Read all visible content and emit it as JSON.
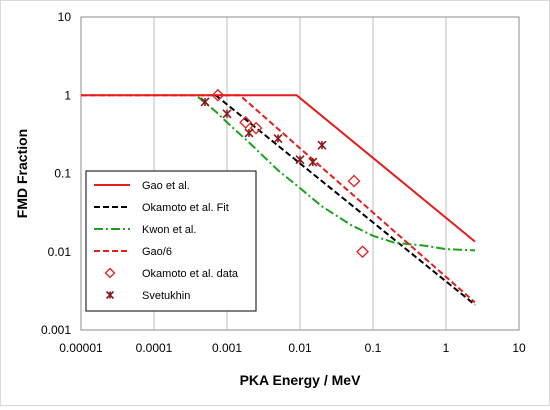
{
  "chart_data": {
    "type": "line",
    "title": "",
    "xlabel": "PKA Energy / MeV",
    "ylabel": "FMD Fraction",
    "x_scale": "log",
    "y_scale": "log",
    "xlim": [
      1e-05,
      10
    ],
    "ylim": [
      0.001,
      10
    ],
    "x_ticks": [
      "0.00001",
      "0.0001",
      "0.001",
      "0.01",
      "0.1",
      "1",
      "10"
    ],
    "y_ticks": [
      "10",
      "1",
      "0.1",
      "0.01",
      "0.001"
    ],
    "grid": "vertical major gridlines",
    "legend_position": "inside lower-left",
    "series": [
      {
        "name": "Gao et al.",
        "style": "solid",
        "color": "#e41e1e",
        "x": [
          1e-05,
          0.009,
          2.5
        ],
        "y": [
          1.0,
          1.0,
          0.0135
        ]
      },
      {
        "name": "Okamoto et al. Fit",
        "style": "dashed",
        "color": "#000000",
        "x": [
          0.0007,
          2.5
        ],
        "y": [
          1.0,
          0.0021
        ]
      },
      {
        "name": "Kwon et al.",
        "style": "dashdot",
        "color": "#1aa31a",
        "x": [
          0.0004,
          0.0007,
          0.001,
          0.002,
          0.005,
          0.01,
          0.02,
          0.05,
          0.1,
          0.2,
          0.5,
          1,
          2.5
        ],
        "y": [
          0.95,
          0.62,
          0.45,
          0.25,
          0.11,
          0.065,
          0.038,
          0.022,
          0.016,
          0.013,
          0.012,
          0.0108,
          0.0104
        ]
      },
      {
        "name": "Gao/6",
        "style": "dashed",
        "color": "#e41e1e",
        "x": [
          1e-05,
          0.0015,
          2.5
        ],
        "y": [
          1.0,
          1.0,
          0.00225
        ]
      },
      {
        "name": "Okamoto et al. data",
        "style": "marker-diamond",
        "color": "#e41e1e",
        "x": [
          0.00075,
          0.0018,
          0.0025,
          0.055,
          0.072
        ],
        "y": [
          1.0,
          0.45,
          0.38,
          0.08,
          0.01
        ]
      },
      {
        "name": "Svetukhin",
        "style": "marker-asterisk",
        "color": "#8b1a1a",
        "x": [
          0.0005,
          0.001,
          0.002,
          0.005,
          0.01,
          0.015,
          0.02
        ],
        "y": [
          0.82,
          0.58,
          0.33,
          0.28,
          0.15,
          0.14,
          0.23
        ]
      }
    ]
  }
}
